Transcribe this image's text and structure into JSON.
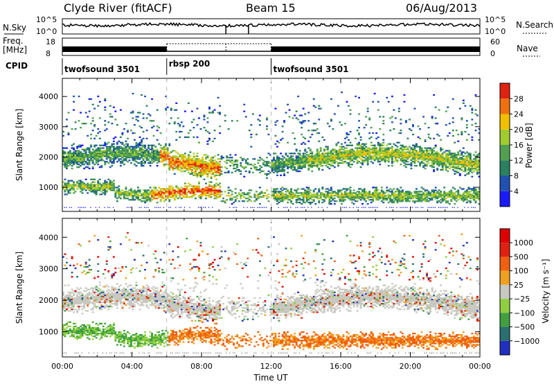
{
  "header": {
    "station": "Clyde River (fitACF)",
    "beam": "Beam 15",
    "date": "06/Aug/2013"
  },
  "noise_panel": {
    "left_label": "N.Sky",
    "left_ticks": [
      "10^5",
      "10^0"
    ],
    "right_ticks": [
      "10^5",
      "10^0"
    ],
    "right_label": "N.Search"
  },
  "freq_panel": {
    "left_label_1": "Freq.",
    "left_label_2": "[MHz]",
    "left_ticks": [
      "18",
      "8"
    ],
    "right_ticks": [
      "60",
      "0"
    ],
    "right_label": "Nave"
  },
  "cpid": {
    "label": "CPID",
    "segments": [
      {
        "name": "twofsound 3501",
        "start_hour": 0
      },
      {
        "name": "rbsp 200",
        "start_hour": 6
      },
      {
        "name": "twofsound 3501",
        "start_hour": 12
      }
    ]
  },
  "chart_data": [
    {
      "type": "heatmap",
      "name": "power-panel",
      "ylabel": "Slant Range [km]",
      "xlim_hours": [
        0,
        24
      ],
      "ylim": [
        200,
        4600
      ],
      "yticks": [
        1000,
        2000,
        3000,
        4000
      ],
      "colorbar": {
        "label": "Power [dB]",
        "ticks": [
          4,
          8,
          12,
          16,
          20,
          24,
          28
        ],
        "colors": [
          "#1a1aff",
          "#2050b0",
          "#2a8060",
          "#50a050",
          "#a0cc30",
          "#f0c000",
          "#f07010",
          "#e02010"
        ]
      }
    },
    {
      "type": "heatmap",
      "name": "velocity-panel",
      "ylabel": "Slant Range [km]",
      "xlabel": "Time UT",
      "xlim_hours": [
        0,
        24
      ],
      "ylim": [
        200,
        4600
      ],
      "yticks": [
        1000,
        2000,
        3000,
        4000
      ],
      "xticks": [
        "00:00",
        "04:00",
        "08:00",
        "12:00",
        "16:00",
        "20:00",
        "00:00"
      ],
      "colorbar": {
        "label": "Velocity [m s⁻¹]",
        "ticks": [
          "1000",
          "500",
          "100",
          "25",
          "−25",
          "−100",
          "−500",
          "−1000"
        ],
        "colors": [
          "#2030c0",
          "#2a7070",
          "#40a040",
          "#90d040",
          "#c8c8c0",
          "#f0a020",
          "#f06010",
          "#e02010",
          "#e00000"
        ]
      }
    }
  ]
}
